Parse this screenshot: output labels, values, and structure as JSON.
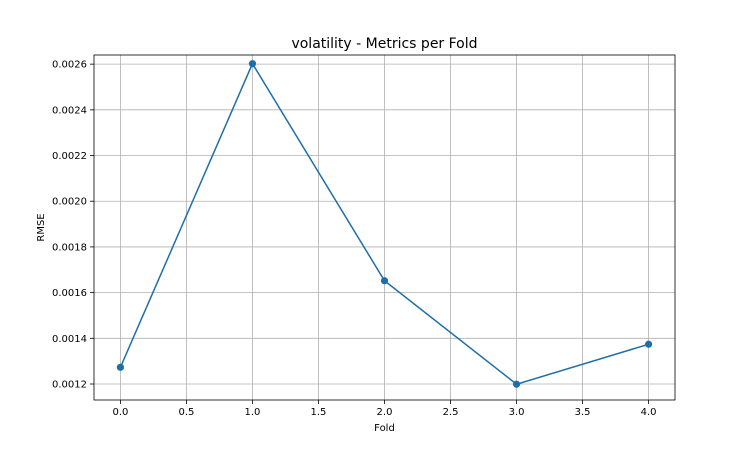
{
  "chart_data": {
    "type": "line",
    "title": "volatility - Metrics per Fold",
    "xlabel": "Fold",
    "ylabel": "RMSE",
    "xlim": [
      -0.2,
      4.2
    ],
    "ylim": [
      0.00113,
      0.00264
    ],
    "grid": true,
    "x_ticks": [
      {
        "value": 0.0,
        "label": "0.0"
      },
      {
        "value": 0.5,
        "label": "0.5"
      },
      {
        "value": 1.0,
        "label": "1.0"
      },
      {
        "value": 1.5,
        "label": "1.5"
      },
      {
        "value": 2.0,
        "label": "2.0"
      },
      {
        "value": 2.5,
        "label": "2.5"
      },
      {
        "value": 3.0,
        "label": "3.0"
      },
      {
        "value": 3.5,
        "label": "3.5"
      },
      {
        "value": 4.0,
        "label": "4.0"
      }
    ],
    "y_ticks": [
      {
        "value": 0.0012,
        "label": "0.0012"
      },
      {
        "value": 0.0014,
        "label": "0.0014"
      },
      {
        "value": 0.0016,
        "label": "0.0016"
      },
      {
        "value": 0.0018,
        "label": "0.0018"
      },
      {
        "value": 0.002,
        "label": "0.0020"
      },
      {
        "value": 0.0022,
        "label": "0.0022"
      },
      {
        "value": 0.0024,
        "label": "0.0024"
      },
      {
        "value": 0.0026,
        "label": "0.0026"
      }
    ],
    "series": [
      {
        "color": "#1f6ea8",
        "marker": "circle",
        "x": [
          0,
          1,
          2,
          3,
          4
        ],
        "y": [
          0.001273,
          0.002602,
          0.001652,
          0.001199,
          0.001374
        ]
      }
    ]
  }
}
